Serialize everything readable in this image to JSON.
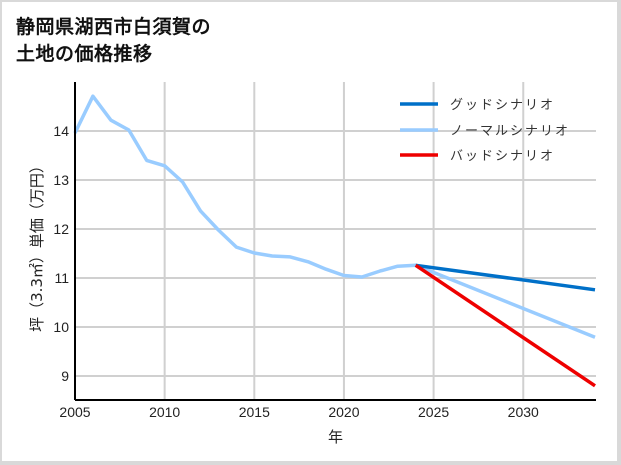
{
  "title_line1": "静岡県湖西市白須賀の",
  "title_line2": "土地の価格推移",
  "chart_data": {
    "type": "line",
    "title": "静岡県湖西市白須賀の土地の価格推移",
    "xlabel": "年",
    "ylabel": "坪（3.3㎡）単価（万円）",
    "xlim": [
      2005,
      2034
    ],
    "ylim": [
      8.5,
      15.0
    ],
    "xticks": [
      2005,
      2010,
      2015,
      2020,
      2025,
      2030
    ],
    "yticks": [
      9,
      10,
      11,
      12,
      13,
      14
    ],
    "grid": true,
    "legend_position": "upper right",
    "series": [
      {
        "name": "グッドシナリオ",
        "color": "#0070c8",
        "x": [
          2024,
          2034
        ],
        "y": [
          11.26,
          10.76
        ]
      },
      {
        "name": "ノーマルシナリオ",
        "color": "#99ccff",
        "x": [
          2005,
          2006,
          2007,
          2008,
          2009,
          2010,
          2011,
          2012,
          2013,
          2014,
          2015,
          2016,
          2017,
          2018,
          2019,
          2020,
          2021,
          2022,
          2023,
          2024,
          2034
        ],
        "y": [
          13.96,
          14.71,
          14.22,
          14.02,
          13.4,
          13.29,
          12.96,
          12.37,
          11.98,
          11.63,
          11.51,
          11.45,
          11.43,
          11.33,
          11.18,
          11.05,
          11.02,
          11.14,
          11.24,
          11.26,
          9.79
        ]
      },
      {
        "name": "バッドシナリオ",
        "color": "#ee0000",
        "x": [
          2024,
          2034
        ],
        "y": [
          11.26,
          8.8
        ]
      }
    ]
  }
}
